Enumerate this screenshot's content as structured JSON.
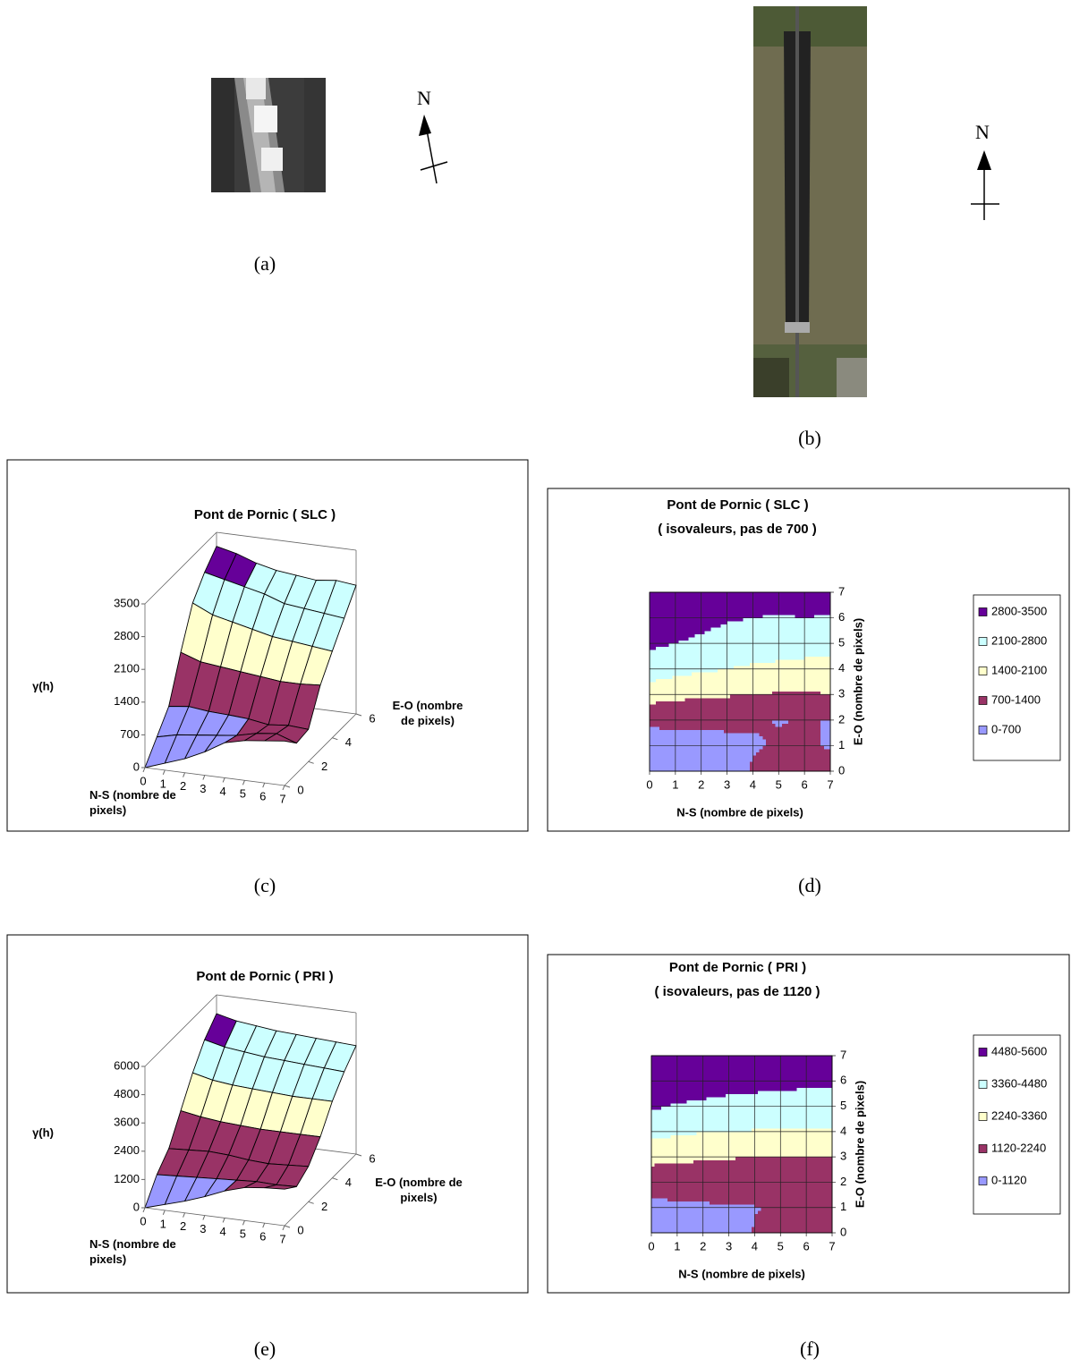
{
  "images": {
    "north_a": "N",
    "caption_a": "(a)",
    "north_b": "N",
    "caption_b": "(b)"
  },
  "chart_data": [
    {
      "type": "surface",
      "title": "Pont de Pornic ( SLC )",
      "caption": "(c)",
      "xlabel": "N-S (nombre de pixels)",
      "ylabel": "E-O (nombre de pixels)",
      "zlabel": "γ(h)",
      "xlim": [
        0,
        7
      ],
      "xticks": [
        0,
        1,
        2,
        3,
        4,
        5,
        6,
        7
      ],
      "ylim": [
        0,
        6
      ],
      "yticks": [
        0,
        2,
        4,
        6
      ],
      "zlim": [
        0,
        3500
      ],
      "zticks": [
        0,
        700,
        1400,
        2100,
        2800,
        3500
      ],
      "band_colors": [
        "#9999ff",
        "#993366",
        "#ffffcc",
        "#ccffff",
        "#660099"
      ],
      "z": [
        [
          0,
          150,
          300,
          500,
          750,
          850,
          900,
          950
        ],
        [
          400,
          500,
          550,
          600,
          650,
          750,
          800,
          650
        ],
        [
          800,
          850,
          800,
          780,
          750,
          680,
          720,
          690
        ],
        [
          1700,
          1550,
          1500,
          1450,
          1400,
          1350,
          1350,
          1380
        ],
        [
          2500,
          2300,
          2200,
          2100,
          2000,
          1950,
          1900,
          1850
        ],
        [
          2900,
          2800,
          2700,
          2600,
          2450,
          2400,
          2350,
          2300
        ],
        [
          3200,
          3100,
          2950,
          2850,
          2800,
          2750,
          2800,
          2750
        ]
      ]
    },
    {
      "type": "contour",
      "title": "Pont de Pornic ( SLC )",
      "subtitle": "( isovaleurs, pas de 700 )",
      "caption": "(d)",
      "xlabel": "N-S (nombre de pixels)",
      "ylabel": "E-O (nombre de pixels)",
      "xlim": [
        0,
        7
      ],
      "xticks": [
        0,
        1,
        2,
        3,
        4,
        5,
        6,
        7
      ],
      "ylim": [
        0,
        7
      ],
      "yticks": [
        0,
        1,
        2,
        3,
        4,
        5,
        6,
        7
      ],
      "levels": [
        0,
        700,
        1400,
        2100,
        2800,
        3500
      ],
      "series": [
        {
          "name": "0-700",
          "color": "#9999ff"
        },
        {
          "name": "700-1400",
          "color": "#993366"
        },
        {
          "name": "1400-2100",
          "color": "#ffffcc"
        },
        {
          "name": "2100-2800",
          "color": "#ccffff"
        },
        {
          "name": "2800-3500",
          "color": "#660099"
        }
      ],
      "z": [
        [
          0,
          150,
          300,
          500,
          750,
          850,
          900,
          950
        ],
        [
          400,
          500,
          550,
          600,
          650,
          750,
          800,
          650
        ],
        [
          800,
          850,
          800,
          780,
          750,
          680,
          720,
          690
        ],
        [
          1700,
          1550,
          1500,
          1450,
          1400,
          1350,
          1350,
          1380
        ],
        [
          2500,
          2300,
          2200,
          2100,
          2000,
          1950,
          1900,
          1850
        ],
        [
          2900,
          2800,
          2700,
          2600,
          2450,
          2400,
          2350,
          2300
        ],
        [
          3200,
          3100,
          2950,
          2850,
          2800,
          2750,
          2800,
          2750
        ],
        [
          3300,
          3250,
          3200,
          3150,
          3100,
          3050,
          3100,
          3050
        ]
      ]
    },
    {
      "type": "surface",
      "title": "Pont de Pornic ( PRI )",
      "caption": "(e)",
      "xlabel": "N-S (nombre de pixels)",
      "ylabel": "E-O (nombre de pixels)",
      "zlabel": "γ(h)",
      "xlim": [
        0,
        7
      ],
      "xticks": [
        0,
        1,
        2,
        3,
        4,
        5,
        6,
        7
      ],
      "ylim": [
        0,
        6
      ],
      "yticks": [
        0,
        2,
        4,
        6
      ],
      "zlim": [
        0,
        6000
      ],
      "zticks": [
        0,
        1200,
        2400,
        3600,
        4800,
        6000
      ],
      "band_colors": [
        "#9999ff",
        "#993366",
        "#ffffcc",
        "#ccffff",
        "#660099"
      ],
      "z": [
        [
          0,
          250,
          500,
          800,
          1150,
          1400,
          1500,
          1550
        ],
        [
          900,
          950,
          1000,
          1050,
          1100,
          1150,
          1120,
          1150
        ],
        [
          1500,
          1550,
          1600,
          1550,
          1450,
          1400,
          1450,
          1500
        ],
        [
          2600,
          2450,
          2350,
          2300,
          2250,
          2250,
          2250,
          2250
        ],
        [
          3700,
          3500,
          3400,
          3350,
          3300,
          3250,
          3250,
          3250
        ],
        [
          4600,
          4400,
          4300,
          4200,
          4150,
          4100,
          4050,
          4000
        ],
        [
          5200,
          5000,
          4900,
          4800,
          4750,
          4700,
          4650,
          4600
        ]
      ]
    },
    {
      "type": "contour",
      "title": "Pont de Pornic ( PRI )",
      "subtitle": "( isovaleurs, pas de 1120 )",
      "caption": "(f)",
      "xlabel": "N-S (nombre de pixels)",
      "ylabel": "E-O (nombre de pixels)",
      "xlim": [
        0,
        7
      ],
      "xticks": [
        0,
        1,
        2,
        3,
        4,
        5,
        6,
        7
      ],
      "ylim": [
        0,
        7
      ],
      "yticks": [
        0,
        1,
        2,
        3,
        4,
        5,
        6,
        7
      ],
      "levels": [
        0,
        1120,
        2240,
        3360,
        4480,
        5600
      ],
      "series": [
        {
          "name": "0-1120",
          "color": "#9999ff"
        },
        {
          "name": "1120-2240",
          "color": "#993366"
        },
        {
          "name": "2240-3360",
          "color": "#ffffcc"
        },
        {
          "name": "3360-4480",
          "color": "#ccffff"
        },
        {
          "name": "4480-5600",
          "color": "#660099"
        }
      ],
      "z": [
        [
          0,
          250,
          500,
          800,
          1150,
          1400,
          1500,
          1550
        ],
        [
          900,
          950,
          1000,
          1050,
          1100,
          1150,
          1120,
          1150
        ],
        [
          1500,
          1550,
          1600,
          1550,
          1450,
          1400,
          1450,
          1500
        ],
        [
          2600,
          2450,
          2350,
          2300,
          2250,
          2250,
          2250,
          2250
        ],
        [
          3700,
          3500,
          3400,
          3350,
          3300,
          3250,
          3250,
          3250
        ],
        [
          4600,
          4400,
          4300,
          4200,
          4150,
          4100,
          4050,
          4000
        ],
        [
          5200,
          5000,
          4900,
          4800,
          4750,
          4700,
          4650,
          4600
        ],
        [
          5600,
          5500,
          5400,
          5350,
          5300,
          5300,
          5250,
          5200
        ]
      ]
    }
  ]
}
